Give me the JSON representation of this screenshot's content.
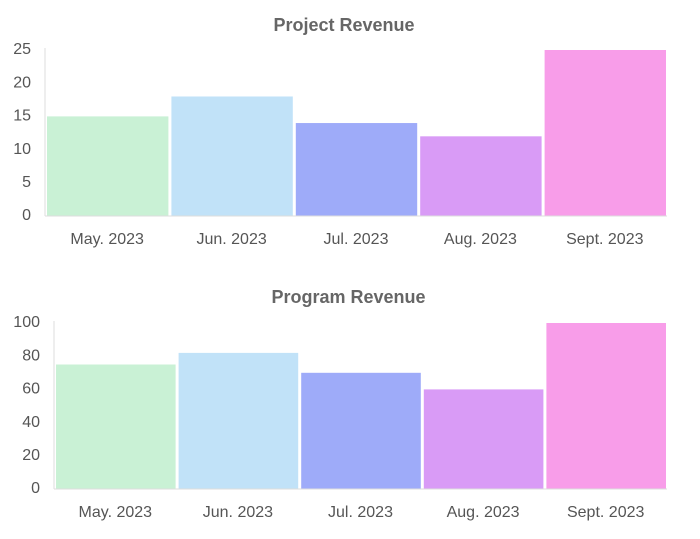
{
  "chart_data": [
    {
      "type": "bar",
      "title": "Project Revenue",
      "categories": [
        "May. 2023",
        "Jun. 2023",
        "Jul. 2023",
        "Aug. 2023",
        "Sept. 2023"
      ],
      "values": [
        15,
        18,
        14,
        12,
        25
      ],
      "colors": [
        "#c9f1d5",
        "#c1e2f8",
        "#9eabf9",
        "#d99bf6",
        "#f89de9"
      ],
      "ylim": [
        0,
        25
      ],
      "yticks": [
        0,
        5,
        10,
        15,
        20,
        25
      ],
      "grid": false
    },
    {
      "type": "bar",
      "title": "Program Revenue",
      "categories": [
        "May. 2023",
        "Jun. 2023",
        "Jul. 2023",
        "Aug. 2023",
        "Sept. 2023"
      ],
      "values": [
        75,
        82,
        70,
        60,
        100
      ],
      "colors": [
        "#c9f1d5",
        "#c1e2f8",
        "#9eabf9",
        "#d99bf6",
        "#f89de9"
      ],
      "ylim": [
        0,
        100
      ],
      "yticks": [
        0,
        20,
        40,
        60,
        80,
        100
      ],
      "grid": false
    }
  ]
}
